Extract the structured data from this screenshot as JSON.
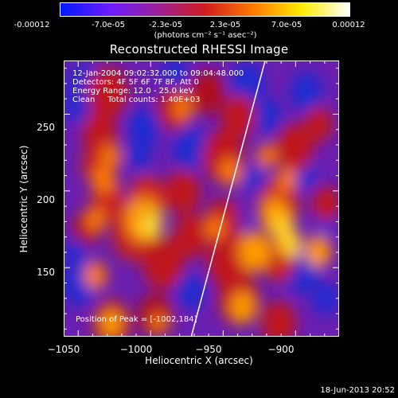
{
  "colorbar": {
    "tick_labels": [
      "-0.00012",
      "-7.0e-05",
      "-2.3e-05",
      "2.3e-05",
      "7.0e-05",
      "0.00012"
    ],
    "unit_label": "(photons cm⁻² s⁻¹ asec⁻²)",
    "colors": [
      "#0018ff",
      "#6a1cff",
      "#9b1f9b",
      "#d01c1c",
      "#ff7a00",
      "#ffea00",
      "#ffffff"
    ]
  },
  "chart_data": {
    "type": "heatmap",
    "title": "Reconstructed RHESSI Image",
    "xlabel": "Heliocentric X (arcsec)",
    "ylabel": "Heliocentric Y (arcsec)",
    "xlim": [
      -1060,
      -870
    ],
    "ylim": [
      105,
      285
    ],
    "x_ticks": [
      -1050,
      -1000,
      -950,
      -900
    ],
    "y_ticks": [
      150,
      200,
      250
    ],
    "x_tick_labels": [
      "−1050",
      "−1000",
      "−950",
      "−900"
    ],
    "y_tick_labels": [
      "150",
      "200",
      "250"
    ],
    "value_range": [
      -0.00012,
      0.00012
    ],
    "peak": [
      -1002,
      184
    ],
    "limb_line": [
      [
        -972,
        105
      ],
      [
        -921,
        285
      ]
    ]
  },
  "annotations": {
    "time_range": "12-Jan-2004 09:02:32.000 to 09:04:48.000",
    "detectors": "Detectors: 4F 5F 6F 7F 8F, Att 0",
    "energy_range": "Energy Range: 12.0 - 25.0 keV",
    "method_counts": "Clean     Total counts: 1.40E+03",
    "peak_position": "Position of Peak = [-1002,184]"
  },
  "footer": "18-Jun-2013 20:52"
}
